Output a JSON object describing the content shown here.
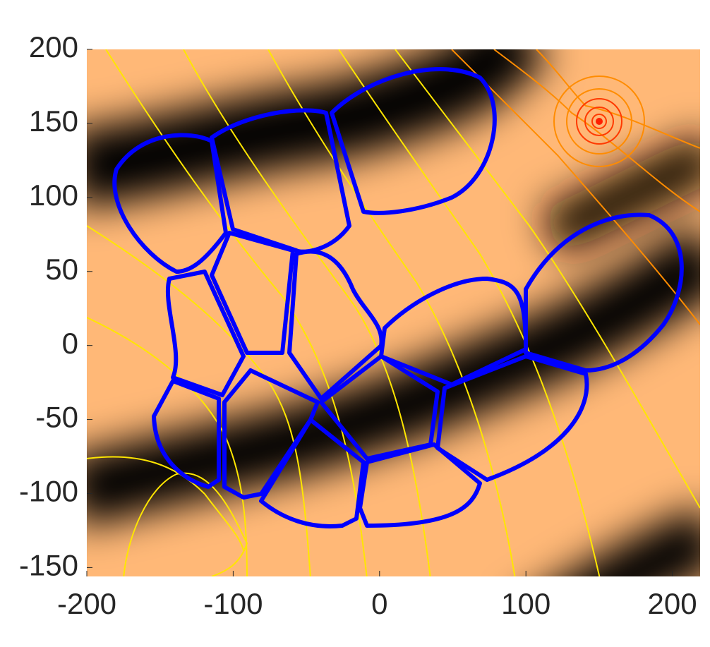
{
  "chart_data": {
    "type": "heatmap",
    "xlim": [
      -200,
      219
    ],
    "ylim": [
      -156,
      200
    ],
    "xticks": [
      -200,
      -100,
      0,
      100,
      200
    ],
    "yticks": [
      -150,
      -100,
      -50,
      0,
      50,
      100,
      150,
      200
    ]
  }
}
